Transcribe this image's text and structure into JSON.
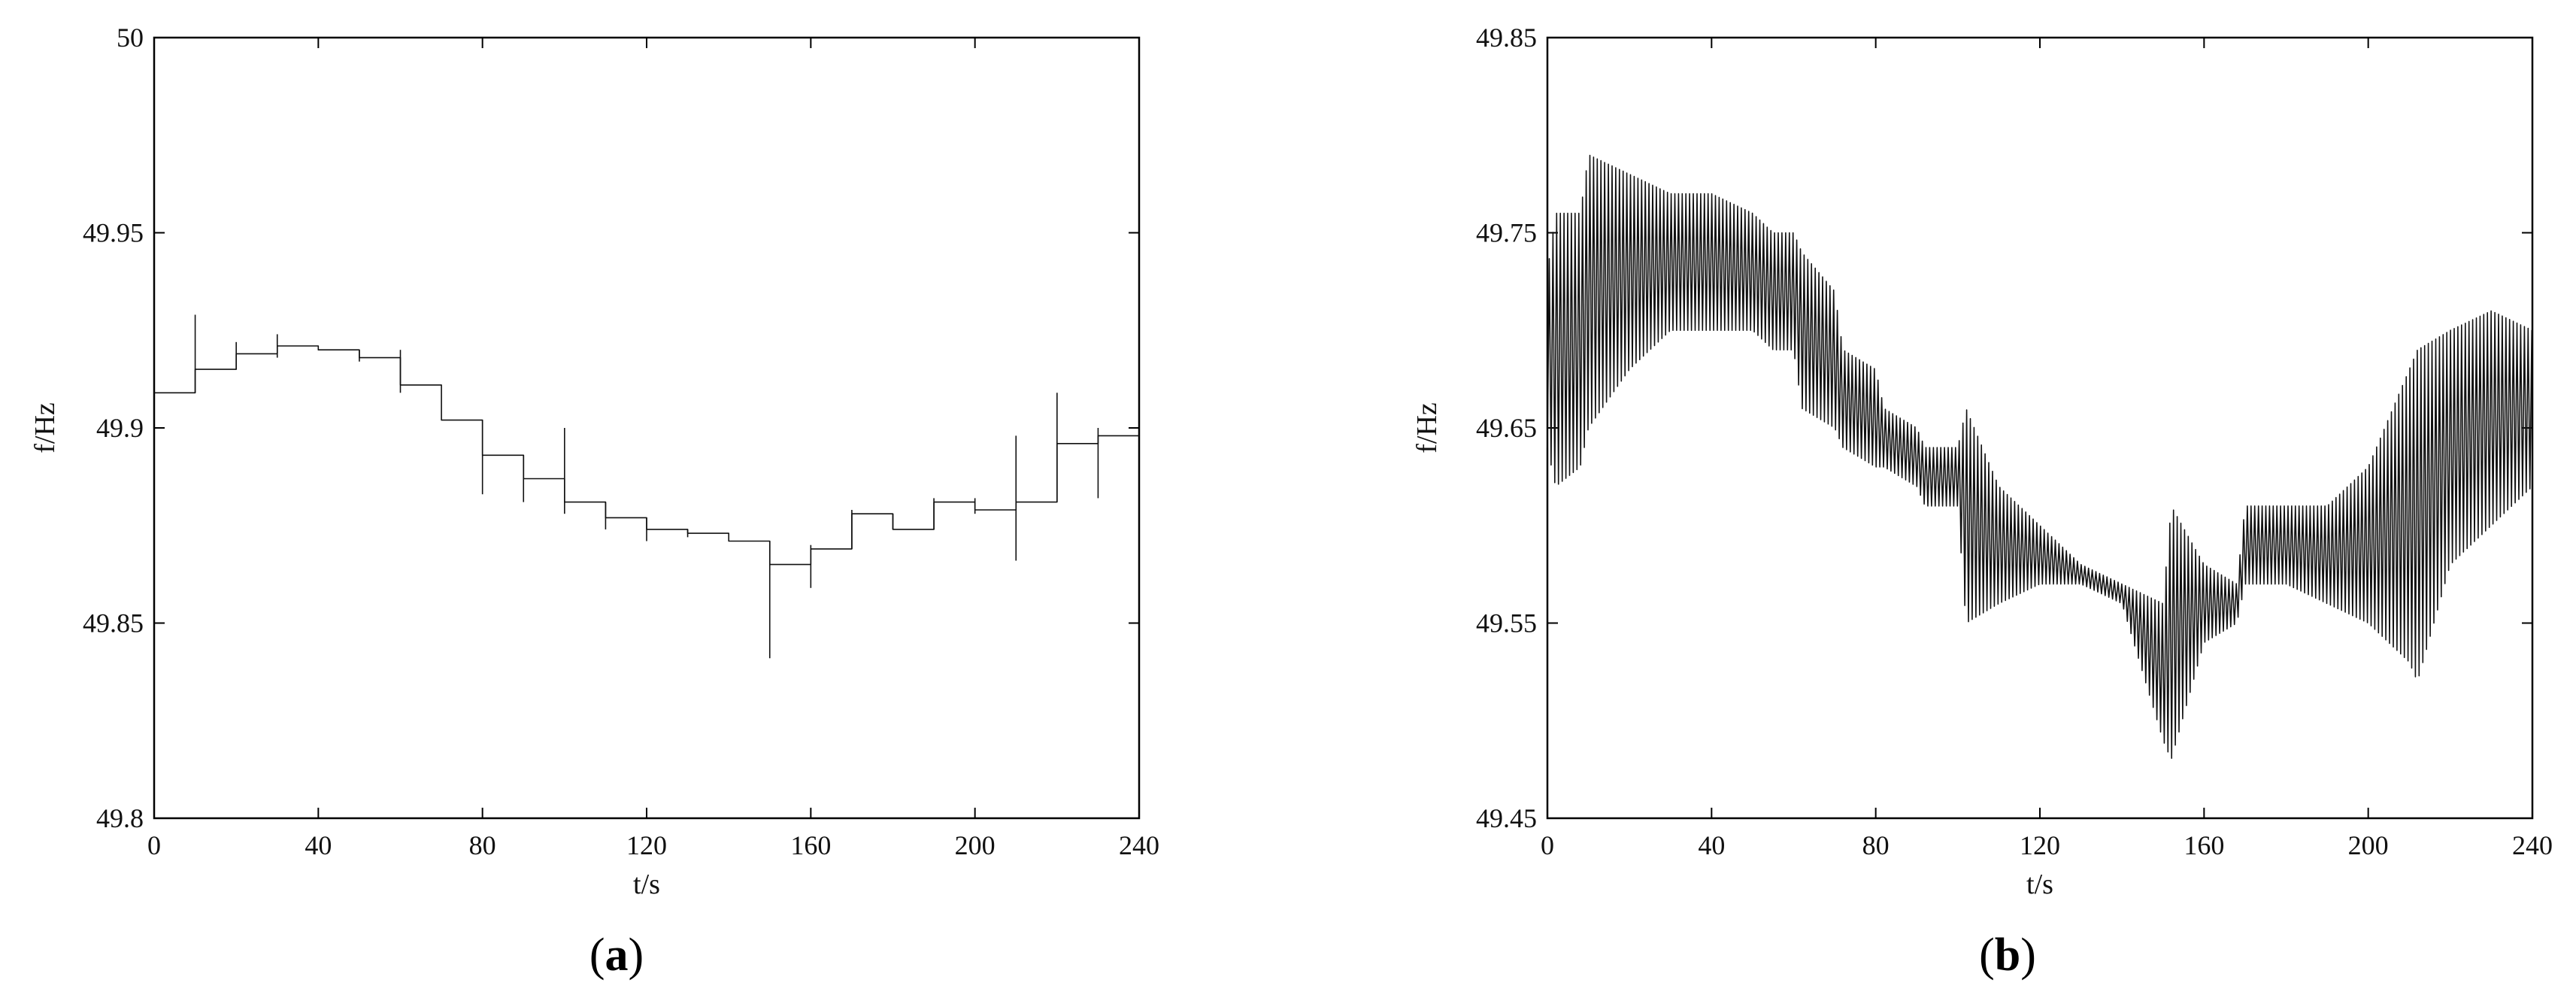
{
  "chart_data": [
    {
      "type": "line",
      "panel_label": "(a)",
      "panel_letter": "a",
      "xlabel": "t/s",
      "ylabel": "f/Hz",
      "xlim": [
        0,
        240
      ],
      "ylim": [
        49.8,
        50
      ],
      "xticks": [
        0,
        40,
        80,
        120,
        160,
        200,
        240
      ],
      "xtick_labels": [
        "0",
        "40",
        "80",
        "120",
        "160",
        "200",
        "240"
      ],
      "yticks": [
        49.8,
        49.85,
        49.9,
        49.95,
        50
      ],
      "ytick_labels": [
        "49.8",
        "49.85",
        "49.9",
        "49.95",
        "50"
      ],
      "grid": false,
      "series": [
        {
          "style": "step",
          "line_color": "#111111",
          "x": [
            0,
            10,
            20,
            30,
            40,
            50,
            60,
            70,
            80,
            90,
            100,
            110,
            120,
            130,
            140,
            150,
            160,
            170,
            180,
            190,
            200,
            210,
            220,
            230
          ],
          "y": [
            49.909,
            49.915,
            49.919,
            49.921,
            49.92,
            49.918,
            49.911,
            49.902,
            49.893,
            49.887,
            49.881,
            49.877,
            49.874,
            49.873,
            49.871,
            49.865,
            49.869,
            49.878,
            49.874,
            49.881,
            49.879,
            49.881,
            49.896,
            49.898
          ],
          "x_end": 240,
          "spikes": [
            {
              "x": 10,
              "low": 49.909,
              "high": 49.929
            },
            {
              "x": 20,
              "low": 49.915,
              "high": 49.922
            },
            {
              "x": 30,
              "low": 49.918,
              "high": 49.924
            },
            {
              "x": 50,
              "low": 49.917,
              "high": 49.92
            },
            {
              "x": 60,
              "low": 49.909,
              "high": 49.92
            },
            {
              "x": 80,
              "low": 49.883,
              "high": 49.902
            },
            {
              "x": 90,
              "low": 49.881,
              "high": 49.893
            },
            {
              "x": 100,
              "low": 49.878,
              "high": 49.9
            },
            {
              "x": 110,
              "low": 49.874,
              "high": 49.881
            },
            {
              "x": 120,
              "low": 49.871,
              "high": 49.877
            },
            {
              "x": 130,
              "low": 49.872,
              "high": 49.874
            },
            {
              "x": 150,
              "low": 49.841,
              "high": 49.871
            },
            {
              "x": 160,
              "low": 49.859,
              "high": 49.87
            },
            {
              "x": 170,
              "low": 49.869,
              "high": 49.879
            },
            {
              "x": 180,
              "low": 49.874,
              "high": 49.878
            },
            {
              "x": 190,
              "low": 49.874,
              "high": 49.882
            },
            {
              "x": 200,
              "low": 49.878,
              "high": 49.882
            },
            {
              "x": 210,
              "low": 49.866,
              "high": 49.898
            },
            {
              "x": 220,
              "low": 49.881,
              "high": 49.909
            },
            {
              "x": 230,
              "low": 49.882,
              "high": 49.9
            }
          ]
        }
      ]
    },
    {
      "type": "line",
      "panel_label": "(b)",
      "panel_letter": "b",
      "xlabel": "t/s",
      "ylabel": "f/Hz",
      "xlim": [
        0,
        240
      ],
      "ylim": [
        49.45,
        49.85
      ],
      "xticks": [
        0,
        40,
        80,
        120,
        160,
        200,
        240
      ],
      "xtick_labels": [
        "0",
        "40",
        "80",
        "120",
        "160",
        "200",
        "240"
      ],
      "yticks": [
        49.45,
        49.55,
        49.65,
        49.75,
        49.85
      ],
      "ytick_labels": [
        "49.45",
        "49.55",
        "49.65",
        "49.75",
        "49.85"
      ],
      "grid": false,
      "series": [
        {
          "style": "oscillation",
          "line_color": "#111111",
          "envelope_x": [
            0,
            2,
            8,
            10,
            20,
            30,
            40,
            50,
            55,
            60,
            62,
            70,
            72,
            80,
            82,
            90,
            92,
            100,
            102,
            110,
            120,
            130,
            140,
            150,
            152,
            160,
            168,
            170,
            180,
            190,
            200,
            210,
            212,
            220,
            230,
            240
          ],
          "envelope_lower": [
            49.64,
            49.62,
            49.63,
            49.65,
            49.68,
            49.7,
            49.7,
            49.7,
            49.69,
            49.69,
            49.66,
            49.65,
            49.64,
            49.63,
            49.63,
            49.62,
            49.61,
            49.61,
            49.55,
            49.56,
            49.57,
            49.57,
            49.56,
            49.49,
            49.48,
            49.54,
            49.55,
            49.57,
            49.57,
            49.56,
            49.55,
            49.53,
            49.52,
            49.58,
            49.6,
            49.62
          ],
          "envelope_upper": [
            49.73,
            49.76,
            49.76,
            49.79,
            49.78,
            49.77,
            49.77,
            49.76,
            49.75,
            49.75,
            49.74,
            49.72,
            49.69,
            49.68,
            49.66,
            49.65,
            49.64,
            49.64,
            49.66,
            49.62,
            49.6,
            49.58,
            49.57,
            49.56,
            49.61,
            49.58,
            49.57,
            49.61,
            49.61,
            49.61,
            49.63,
            49.68,
            49.69,
            49.7,
            49.71,
            49.7
          ]
        }
      ]
    }
  ]
}
